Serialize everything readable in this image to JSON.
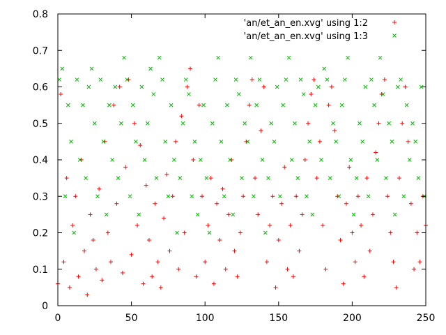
{
  "chart_data": {
    "type": "scatter",
    "title": "",
    "xlabel": "",
    "ylabel": "",
    "xlim": [
      0,
      250
    ],
    "ylim": [
      0,
      0.8
    ],
    "xticks": [
      "0",
      "50",
      "100",
      "150",
      "200",
      "250"
    ],
    "yticks": [
      "0",
      "0.1",
      "0.2",
      "0.3",
      "0.4",
      "0.5",
      "0.6",
      "0.7",
      "0.8"
    ],
    "grid": false,
    "legend_position": "top-right",
    "series": [
      {
        "name": "'an/et_an_en.xvg' using 1:2",
        "marker": "plus",
        "color": "#ff0000",
        "x": [
          0,
          2,
          4,
          6,
          8,
          10,
          12,
          14,
          16,
          18,
          20,
          22,
          24,
          26,
          28,
          30,
          32,
          34,
          36,
          38,
          40,
          42,
          44,
          46,
          48,
          50,
          52,
          54,
          56,
          58,
          60,
          62,
          64,
          66,
          68,
          70,
          72,
          74,
          76,
          78,
          80,
          82,
          84,
          86,
          88,
          90,
          92,
          94,
          96,
          98,
          100,
          102,
          104,
          106,
          108,
          110,
          112,
          114,
          116,
          118,
          120,
          122,
          124,
          126,
          128,
          130,
          132,
          134,
          136,
          138,
          140,
          142,
          144,
          146,
          148,
          150,
          152,
          154,
          156,
          158,
          160,
          162,
          164,
          166,
          168,
          170,
          172,
          174,
          176,
          178,
          180,
          182,
          184,
          186,
          188,
          190,
          192,
          194,
          196,
          198,
          200,
          202,
          204,
          206,
          208,
          210,
          212,
          214,
          216,
          218,
          220,
          222,
          224,
          226,
          228,
          230,
          232,
          234,
          236,
          238,
          240,
          242,
          244,
          246,
          248,
          250
        ],
        "y": [
          0.06,
          0.58,
          0.12,
          0.35,
          0.05,
          0.22,
          0.3,
          0.08,
          0.4,
          0.15,
          0.03,
          0.25,
          0.18,
          0.1,
          0.32,
          0.07,
          0.45,
          0.2,
          0.12,
          0.55,
          0.28,
          0.6,
          0.09,
          0.38,
          0.62,
          0.14,
          0.5,
          0.22,
          0.44,
          0.06,
          0.33,
          0.18,
          0.08,
          0.28,
          0.12,
          0.05,
          0.24,
          0.36,
          0.15,
          0.3,
          0.45,
          0.1,
          0.52,
          0.2,
          0.6,
          0.65,
          0.4,
          0.08,
          0.55,
          0.3,
          0.12,
          0.22,
          0.35,
          0.06,
          0.28,
          0.18,
          0.32,
          0.1,
          0.25,
          0.4,
          0.15,
          0.08,
          0.2,
          0.3,
          0.45,
          0.55,
          0.62,
          0.35,
          0.25,
          0.48,
          0.6,
          0.12,
          0.22,
          0.3,
          0.05,
          0.18,
          0.28,
          0.38,
          0.1,
          0.22,
          0.08,
          0.3,
          0.15,
          0.25,
          0.4,
          0.5,
          0.58,
          0.62,
          0.35,
          0.45,
          0.22,
          0.1,
          0.55,
          0.6,
          0.48,
          0.3,
          0.18,
          0.06,
          0.28,
          0.38,
          0.2,
          0.12,
          0.3,
          0.22,
          0.08,
          0.35,
          0.15,
          0.25,
          0.42,
          0.5,
          0.58,
          0.62,
          0.3,
          0.2,
          0.12,
          0.05,
          0.35,
          0.5,
          0.6,
          0.45,
          0.28,
          0.1,
          0.2,
          0.12,
          0.3,
          0.22
        ]
      },
      {
        "name": "'an/et_an_en.xvg' using 1:3",
        "marker": "cross",
        "color": "#00bb00",
        "x": [
          1,
          3,
          5,
          7,
          9,
          11,
          13,
          15,
          17,
          19,
          21,
          23,
          25,
          27,
          29,
          31,
          33,
          35,
          37,
          39,
          41,
          43,
          45,
          47,
          49,
          51,
          53,
          55,
          57,
          59,
          61,
          63,
          65,
          67,
          69,
          71,
          73,
          75,
          77,
          79,
          81,
          83,
          85,
          87,
          89,
          91,
          93,
          95,
          97,
          99,
          101,
          103,
          105,
          107,
          109,
          111,
          113,
          115,
          117,
          119,
          121,
          123,
          125,
          127,
          129,
          131,
          133,
          135,
          137,
          139,
          141,
          143,
          145,
          147,
          149,
          151,
          153,
          155,
          157,
          159,
          161,
          163,
          165,
          167,
          169,
          171,
          173,
          175,
          177,
          179,
          181,
          183,
          185,
          187,
          189,
          191,
          193,
          195,
          197,
          199,
          201,
          203,
          205,
          207,
          209,
          211,
          213,
          215,
          217,
          219,
          221,
          223,
          225,
          227,
          229,
          231,
          233,
          235,
          237,
          239,
          241,
          243,
          245,
          247,
          249
        ],
        "y": [
          0.62,
          0.65,
          0.3,
          0.55,
          0.45,
          0.2,
          0.62,
          0.4,
          0.55,
          0.35,
          0.6,
          0.65,
          0.5,
          0.3,
          0.62,
          0.45,
          0.25,
          0.55,
          0.4,
          0.6,
          0.35,
          0.5,
          0.68,
          0.62,
          0.3,
          0.55,
          0.45,
          0.25,
          0.6,
          0.4,
          0.5,
          0.65,
          0.58,
          0.35,
          0.68,
          0.62,
          0.45,
          0.3,
          0.55,
          0.4,
          0.2,
          0.35,
          0.5,
          0.62,
          0.58,
          0.3,
          0.45,
          0.25,
          0.4,
          0.55,
          0.35,
          0.2,
          0.5,
          0.62,
          0.68,
          0.45,
          0.3,
          0.55,
          0.4,
          0.25,
          0.62,
          0.58,
          0.35,
          0.5,
          0.45,
          0.68,
          0.3,
          0.55,
          0.62,
          0.4,
          0.2,
          0.35,
          0.5,
          0.45,
          0.6,
          0.3,
          0.55,
          0.62,
          0.68,
          0.4,
          0.5,
          0.35,
          0.62,
          0.58,
          0.3,
          0.45,
          0.25,
          0.55,
          0.6,
          0.4,
          0.65,
          0.62,
          0.35,
          0.5,
          0.45,
          0.3,
          0.55,
          0.62,
          0.68,
          0.4,
          0.25,
          0.35,
          0.5,
          0.45,
          0.6,
          0.3,
          0.62,
          0.55,
          0.4,
          0.68,
          0.58,
          0.35,
          0.5,
          0.45,
          0.25,
          0.6,
          0.62,
          0.3,
          0.55,
          0.4,
          0.5,
          0.45,
          0.35,
          0.6,
          0.3
        ]
      }
    ]
  }
}
